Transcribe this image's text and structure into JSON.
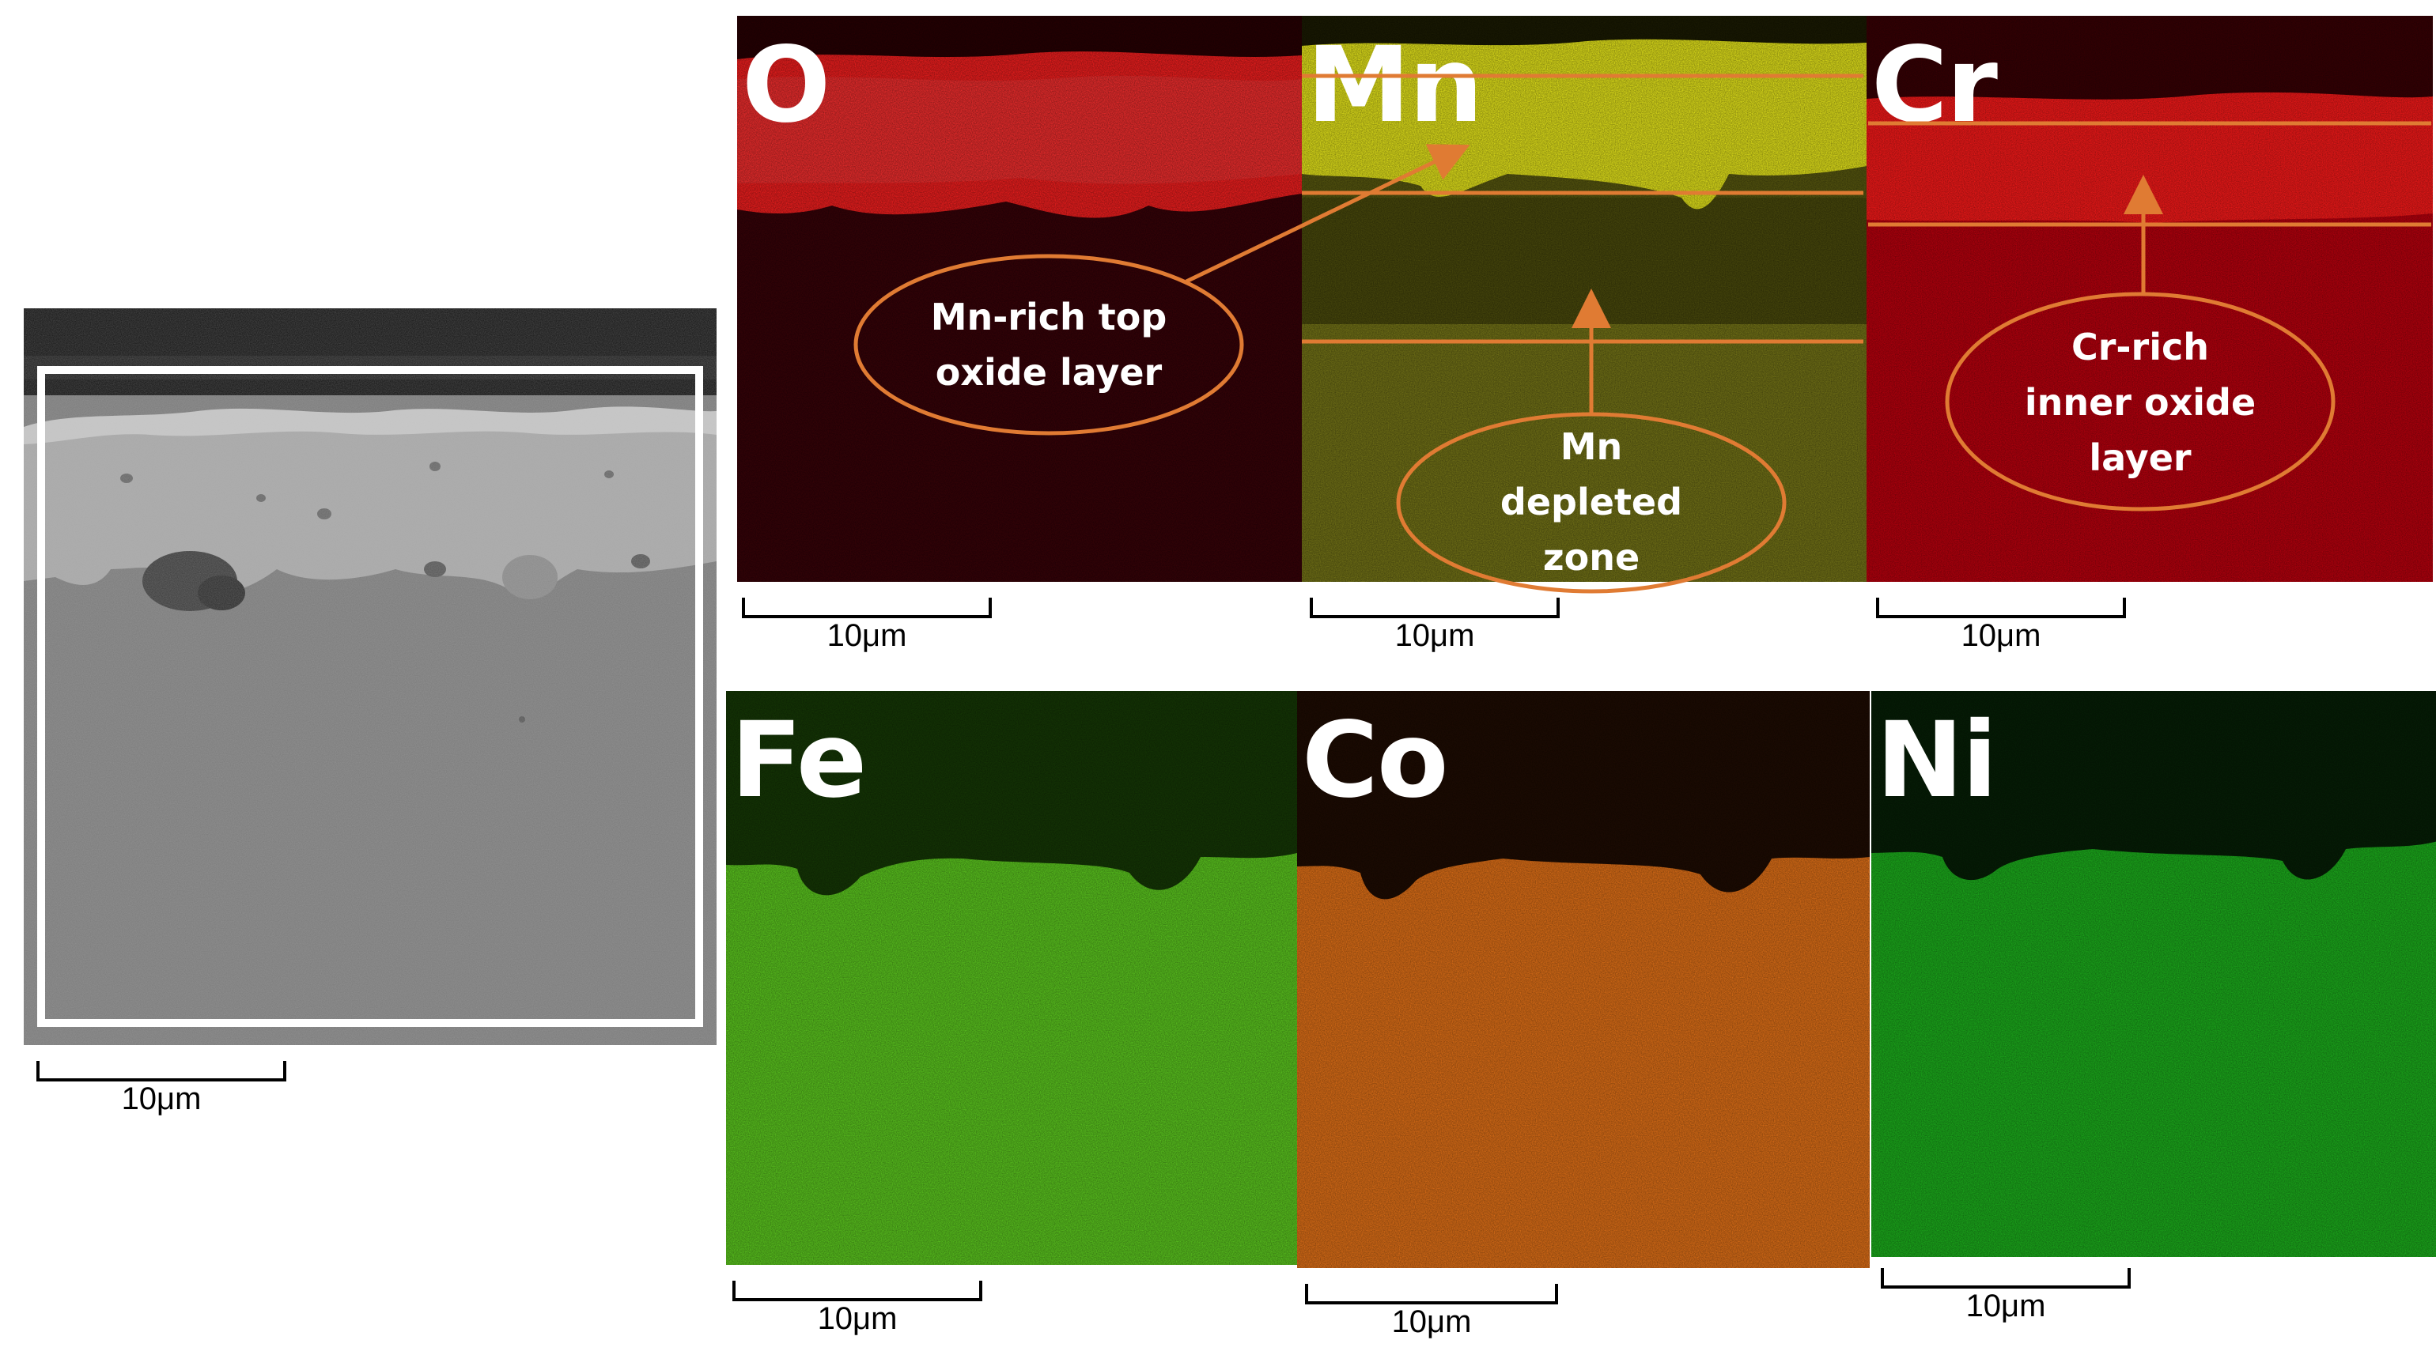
{
  "sem_panel": {
    "scale_label": "10μm"
  },
  "maps": [
    {
      "element": "O",
      "scale_label": "10μm"
    },
    {
      "element": "Mn",
      "scale_label": "10μm"
    },
    {
      "element": "Cr",
      "scale_label": "10μm"
    },
    {
      "element": "Fe",
      "scale_label": "10μm"
    },
    {
      "element": "Co",
      "scale_label": "10μm"
    },
    {
      "element": "Ni",
      "scale_label": "10μm"
    }
  ],
  "annotations": {
    "mn_rich": {
      "line1": "Mn-rich top",
      "line2": "oxide layer"
    },
    "mn_depleted": {
      "line1": "Mn",
      "line2": "depleted",
      "line3": "zone"
    },
    "cr_rich": {
      "line1": "Cr-rich",
      "line2": "inner oxide",
      "line3": "layer"
    }
  },
  "colors": {
    "annotation": "#e07b33",
    "O": "#ff1a1a",
    "Mn": "#e8e81a",
    "Cr": "#ff1a1a",
    "Fe": "#6bd92a",
    "Co": "#ee7d20",
    "Ni": "#1fb41f"
  }
}
